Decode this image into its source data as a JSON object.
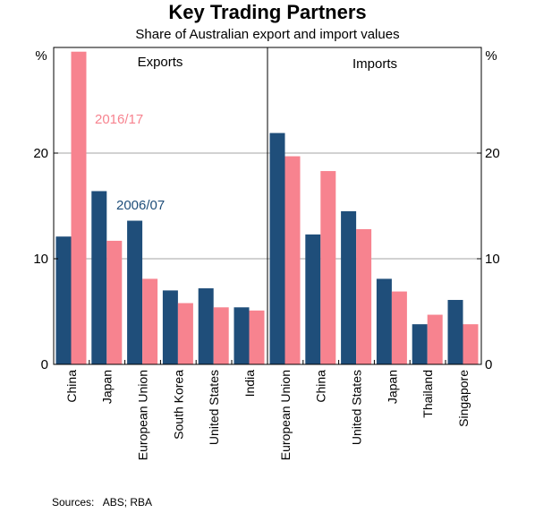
{
  "title": "Key Trading Partners",
  "subtitle": "Share of Australian export and import values",
  "units_left": "%",
  "units_right": "%",
  "source": "Sources:   ABS; RBA",
  "colors": {
    "series_2006": "#1f4e7a",
    "series_2016": "#f7838f",
    "grid": "#a6a6a6",
    "axis": "#000000"
  },
  "chart_data": {
    "type": "bar",
    "ylim": [
      0,
      30
    ],
    "yticks": [
      0,
      10,
      20
    ],
    "grid": true,
    "series_names": [
      "2006/07",
      "2016/17"
    ],
    "panels": [
      {
        "title": "Exports",
        "categories": [
          "China",
          "Japan",
          "European Union",
          "South Korea",
          "United States",
          "India"
        ],
        "series": [
          {
            "name": "2006/07",
            "values": [
              12.1,
              16.4,
              13.6,
              7.0,
              7.2,
              5.4
            ]
          },
          {
            "name": "2016/17",
            "values": [
              29.6,
              11.7,
              8.1,
              5.8,
              5.4,
              5.1
            ]
          }
        ]
      },
      {
        "title": "Imports",
        "categories": [
          "European Union",
          "China",
          "United States",
          "Japan",
          "Thailand",
          "Singapore"
        ],
        "series": [
          {
            "name": "2006/07",
            "values": [
              21.9,
              12.3,
              14.5,
              8.1,
              3.8,
              6.1
            ]
          },
          {
            "name": "2016/17",
            "values": [
              19.7,
              18.3,
              12.8,
              6.9,
              4.7,
              3.8
            ]
          }
        ]
      }
    ]
  }
}
